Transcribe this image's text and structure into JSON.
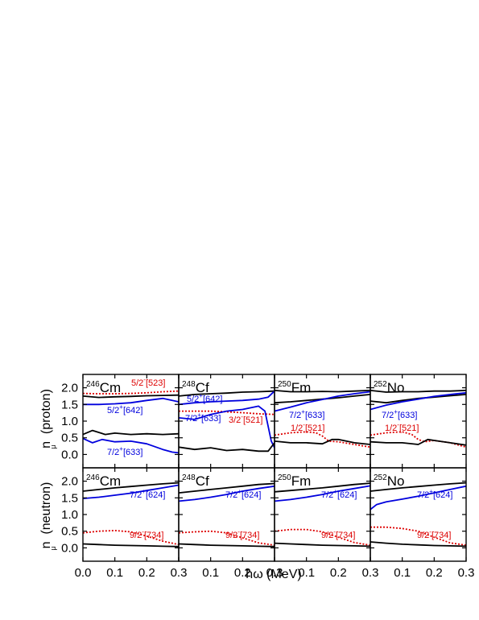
{
  "figure": {
    "xlabel": "ħω (MeV)",
    "ylabel_top": "n  (proton)",
    "ylabel_bottom": "n  (neutron)",
    "ylabel_sub": "μ",
    "colors": {
      "black": "#000000",
      "blue": "#0000dd",
      "red": "#dd0000"
    }
  },
  "chart_data": [
    {
      "type": "line",
      "nucleus": "Cm",
      "mass": "246",
      "row": "proton",
      "xlim": [
        0,
        0.3
      ],
      "ylim": [
        -0.4,
        2.4
      ],
      "xticks": [
        "0.0",
        "0.1",
        "0.2",
        "0.3"
      ],
      "yticks": [
        "0.0",
        "0.5",
        "1.0",
        "1.5",
        "2.0"
      ],
      "series": [
        {
          "color": "black",
          "style": "solid",
          "x": [
            0,
            0.05,
            0.1,
            0.15,
            0.2,
            0.25,
            0.3
          ],
          "y": [
            1.75,
            1.71,
            1.73,
            1.74,
            1.76,
            1.77,
            1.78
          ]
        },
        {
          "color": "red",
          "style": "dotted",
          "label": "5/2",
          "sup": "-",
          "tail": "[523]",
          "x": [
            0,
            0.05,
            0.1,
            0.15,
            0.2,
            0.25,
            0.3
          ],
          "y": [
            1.83,
            1.82,
            1.82,
            1.83,
            1.85,
            1.88,
            1.9
          ]
        },
        {
          "color": "blue",
          "style": "solid",
          "label": "5/2",
          "sup": "+",
          "tail": "[642]",
          "x": [
            0,
            0.05,
            0.1,
            0.15,
            0.2,
            0.25,
            0.3
          ],
          "y": [
            1.5,
            1.5,
            1.52,
            1.55,
            1.62,
            1.68,
            1.58
          ]
        },
        {
          "color": "black",
          "style": "solid",
          "x": [
            0,
            0.03,
            0.07,
            0.1,
            0.15,
            0.2,
            0.25,
            0.3
          ],
          "y": [
            0.6,
            0.72,
            0.6,
            0.64,
            0.6,
            0.62,
            0.6,
            0.62
          ]
        },
        {
          "color": "blue",
          "style": "solid",
          "label": "7/2",
          "sup": "+",
          "tail": "[633]",
          "x": [
            0,
            0.03,
            0.06,
            0.1,
            0.15,
            0.2,
            0.25,
            0.28,
            0.3
          ],
          "y": [
            0.48,
            0.35,
            0.45,
            0.38,
            0.4,
            0.32,
            0.15,
            0.07,
            0.05
          ]
        }
      ]
    },
    {
      "type": "line",
      "nucleus": "Cf",
      "mass": "248",
      "row": "proton",
      "xlim": [
        0,
        0.3
      ],
      "ylim": [
        -0.4,
        2.4
      ],
      "xticks": [
        "0.1",
        "0.2",
        "0.3"
      ],
      "series": [
        {
          "color": "black",
          "style": "solid",
          "x": [
            0,
            0.05,
            0.1,
            0.15,
            0.2,
            0.25,
            0.3
          ],
          "y": [
            1.75,
            1.8,
            1.82,
            1.84,
            1.87,
            1.88,
            1.9
          ]
        },
        {
          "color": "blue",
          "style": "solid",
          "label": "5/2",
          "sup": "+",
          "tail": "[642]",
          "x": [
            0,
            0.05,
            0.1,
            0.15,
            0.2,
            0.25,
            0.28,
            0.3
          ],
          "y": [
            1.5,
            1.55,
            1.58,
            1.6,
            1.62,
            1.66,
            1.72,
            1.9
          ]
        },
        {
          "color": "red",
          "style": "dotted",
          "label": "3/2",
          "sup": "-",
          "tail": "[521]",
          "x": [
            0,
            0.05,
            0.1,
            0.15,
            0.2,
            0.25,
            0.3
          ],
          "y": [
            1.3,
            1.3,
            1.3,
            1.28,
            1.25,
            1.22,
            1.2
          ]
        },
        {
          "color": "blue",
          "style": "solid",
          "label": "7/2",
          "sup": "+",
          "tail": "[633]",
          "x": [
            0,
            0.05,
            0.1,
            0.15,
            0.2,
            0.25,
            0.27,
            0.29,
            0.3
          ],
          "y": [
            1.1,
            1.05,
            1.2,
            1.3,
            1.35,
            1.45,
            1.3,
            0.4,
            0.2
          ]
        },
        {
          "color": "black",
          "style": "solid",
          "x": [
            0,
            0.05,
            0.1,
            0.15,
            0.2,
            0.25,
            0.28,
            0.3
          ],
          "y": [
            0.22,
            0.15,
            0.2,
            0.12,
            0.15,
            0.1,
            0.1,
            0.35
          ]
        }
      ]
    },
    {
      "type": "line",
      "nucleus": "Fm",
      "mass": "250",
      "row": "proton",
      "xlim": [
        0,
        0.3
      ],
      "ylim": [
        -0.4,
        2.4
      ],
      "xticks": [
        "0.1",
        "0.2",
        "0.3"
      ],
      "series": [
        {
          "color": "black",
          "style": "solid",
          "x": [
            0,
            0.05,
            0.1,
            0.15,
            0.2,
            0.25,
            0.3
          ],
          "y": [
            1.92,
            1.88,
            1.88,
            1.89,
            1.88,
            1.9,
            1.92
          ]
        },
        {
          "color": "black",
          "style": "solid",
          "x": [
            0,
            0.05,
            0.1,
            0.15,
            0.2,
            0.25,
            0.3
          ],
          "y": [
            1.55,
            1.58,
            1.62,
            1.66,
            1.7,
            1.75,
            1.8
          ]
        },
        {
          "color": "blue",
          "style": "solid",
          "label": "7/2",
          "sup": "+",
          "tail": "[633]",
          "x": [
            0,
            0.05,
            0.1,
            0.15,
            0.2,
            0.25,
            0.3
          ],
          "y": [
            1.3,
            1.42,
            1.55,
            1.65,
            1.75,
            1.82,
            1.88
          ]
        },
        {
          "color": "red",
          "style": "dotted",
          "label": "1/2",
          "sup": "-",
          "tail": "[521]",
          "x": [
            0,
            0.05,
            0.1,
            0.13,
            0.15,
            0.17,
            0.2,
            0.25,
            0.3
          ],
          "y": [
            0.58,
            0.65,
            0.68,
            0.65,
            0.55,
            0.4,
            0.38,
            0.3,
            0.22
          ]
        },
        {
          "color": "black",
          "style": "solid",
          "x": [
            0,
            0.05,
            0.1,
            0.15,
            0.18,
            0.2,
            0.25,
            0.3
          ],
          "y": [
            0.4,
            0.35,
            0.35,
            0.32,
            0.45,
            0.45,
            0.35,
            0.3
          ]
        }
      ]
    },
    {
      "type": "line",
      "nucleus": "No",
      "mass": "252",
      "row": "proton",
      "xlim": [
        0,
        0.3
      ],
      "ylim": [
        -0.4,
        2.4
      ],
      "xticks": [
        "0.1",
        "0.2",
        "0.3"
      ],
      "series": [
        {
          "color": "black",
          "style": "solid",
          "x": [
            0,
            0.05,
            0.1,
            0.15,
            0.2,
            0.25,
            0.3
          ],
          "y": [
            1.92,
            1.87,
            1.88,
            1.88,
            1.9,
            1.9,
            1.92
          ]
        },
        {
          "color": "black",
          "style": "solid",
          "x": [
            0,
            0.05,
            0.1,
            0.15,
            0.2,
            0.25,
            0.3
          ],
          "y": [
            1.6,
            1.55,
            1.62,
            1.68,
            1.72,
            1.76,
            1.8
          ]
        },
        {
          "color": "blue",
          "style": "solid",
          "label": "7/2",
          "sup": "+",
          "tail": "[633]",
          "x": [
            0,
            0.05,
            0.1,
            0.15,
            0.2,
            0.25,
            0.3
          ],
          "y": [
            1.35,
            1.48,
            1.58,
            1.66,
            1.74,
            1.8,
            1.85
          ]
        },
        {
          "color": "red",
          "style": "dotted",
          "label": "1/2",
          "sup": "-",
          "tail": "[521]",
          "x": [
            0,
            0.05,
            0.1,
            0.13,
            0.15,
            0.17,
            0.2,
            0.25,
            0.3
          ],
          "y": [
            0.58,
            0.65,
            0.68,
            0.6,
            0.45,
            0.38,
            0.42,
            0.35,
            0.22
          ]
        },
        {
          "color": "black",
          "style": "solid",
          "x": [
            0,
            0.05,
            0.1,
            0.15,
            0.18,
            0.2,
            0.25,
            0.3
          ],
          "y": [
            0.38,
            0.35,
            0.35,
            0.3,
            0.45,
            0.42,
            0.35,
            0.28
          ]
        }
      ]
    },
    {
      "type": "line",
      "nucleus": "Cm",
      "mass": "246",
      "row": "neutron",
      "xlim": [
        0,
        0.3
      ],
      "ylim": [
        -0.4,
        2.4
      ],
      "xticks": [
        "0.0",
        "0.1",
        "0.2",
        "0.3"
      ],
      "yticks": [
        "0.0",
        "0.5",
        "1.0",
        "1.5",
        "2.0"
      ],
      "series": [
        {
          "color": "black",
          "style": "solid",
          "x": [
            0,
            0.05,
            0.1,
            0.15,
            0.2,
            0.25,
            0.3
          ],
          "y": [
            1.7,
            1.75,
            1.8,
            1.84,
            1.88,
            1.92,
            1.95
          ]
        },
        {
          "color": "blue",
          "style": "solid",
          "label": "7/2",
          "sup": "+",
          "tail": "[624]",
          "x": [
            0,
            0.05,
            0.1,
            0.15,
            0.2,
            0.25,
            0.3
          ],
          "y": [
            1.48,
            1.52,
            1.58,
            1.64,
            1.72,
            1.8,
            1.88
          ]
        },
        {
          "color": "red",
          "style": "dotted",
          "label": "9/2",
          "sup": "-",
          "tail": "[734]",
          "x": [
            0,
            0.05,
            0.1,
            0.15,
            0.2,
            0.25,
            0.3
          ],
          "y": [
            0.45,
            0.5,
            0.52,
            0.48,
            0.35,
            0.2,
            0.1
          ]
        },
        {
          "color": "black",
          "style": "solid",
          "x": [
            0,
            0.05,
            0.1,
            0.15,
            0.2,
            0.25,
            0.3
          ],
          "y": [
            0.12,
            0.1,
            0.08,
            0.07,
            0.06,
            0.05,
            0.04
          ]
        }
      ]
    },
    {
      "type": "line",
      "nucleus": "Cf",
      "mass": "248",
      "row": "neutron",
      "xlim": [
        0,
        0.3
      ],
      "ylim": [
        -0.4,
        2.4
      ],
      "xticks": [
        "0.1",
        "0.2",
        "0.3"
      ],
      "series": [
        {
          "color": "black",
          "style": "solid",
          "x": [
            0,
            0.05,
            0.1,
            0.15,
            0.2,
            0.25,
            0.3
          ],
          "y": [
            1.65,
            1.7,
            1.75,
            1.8,
            1.85,
            1.9,
            1.93
          ]
        },
        {
          "color": "blue",
          "style": "solid",
          "label": "7/2",
          "sup": "+",
          "tail": "[624]",
          "x": [
            0,
            0.05,
            0.1,
            0.15,
            0.2,
            0.25,
            0.3
          ],
          "y": [
            1.4,
            1.45,
            1.52,
            1.6,
            1.7,
            1.78,
            1.85
          ]
        },
        {
          "color": "red",
          "style": "dotted",
          "label": "9/2",
          "sup": "-",
          "tail": "[734]",
          "x": [
            0,
            0.05,
            0.1,
            0.15,
            0.2,
            0.25,
            0.3
          ],
          "y": [
            0.45,
            0.48,
            0.5,
            0.45,
            0.3,
            0.15,
            0.08
          ]
        },
        {
          "color": "black",
          "style": "solid",
          "x": [
            0,
            0.05,
            0.1,
            0.15,
            0.2,
            0.25,
            0.3
          ],
          "y": [
            0.12,
            0.1,
            0.08,
            0.07,
            0.06,
            0.05,
            0.04
          ]
        }
      ]
    },
    {
      "type": "line",
      "nucleus": "Fm",
      "mass": "250",
      "row": "neutron",
      "xlim": [
        0,
        0.3
      ],
      "ylim": [
        -0.4,
        2.4
      ],
      "xticks": [
        "0.1",
        "0.2",
        "0.3"
      ],
      "series": [
        {
          "color": "black",
          "style": "solid",
          "x": [
            0,
            0.05,
            0.1,
            0.15,
            0.2,
            0.25,
            0.3
          ],
          "y": [
            1.68,
            1.72,
            1.76,
            1.8,
            1.85,
            1.9,
            1.94
          ]
        },
        {
          "color": "blue",
          "style": "solid",
          "label": "7/2",
          "sup": "+",
          "tail": "[624]",
          "x": [
            0,
            0.05,
            0.1,
            0.15,
            0.2,
            0.25,
            0.3
          ],
          "y": [
            1.4,
            1.45,
            1.52,
            1.6,
            1.7,
            1.78,
            1.86
          ]
        },
        {
          "color": "red",
          "style": "dotted",
          "label": "9/2",
          "sup": "-",
          "tail": "[734]",
          "x": [
            0,
            0.05,
            0.1,
            0.15,
            0.2,
            0.25,
            0.3
          ],
          "y": [
            0.5,
            0.55,
            0.55,
            0.48,
            0.32,
            0.16,
            0.08
          ]
        },
        {
          "color": "black",
          "style": "solid",
          "x": [
            0,
            0.05,
            0.1,
            0.15,
            0.2,
            0.25,
            0.3
          ],
          "y": [
            0.14,
            0.12,
            0.1,
            0.08,
            0.07,
            0.06,
            0.05
          ]
        }
      ]
    },
    {
      "type": "line",
      "nucleus": "No",
      "mass": "252",
      "row": "neutron",
      "xlim": [
        0,
        0.3
      ],
      "ylim": [
        -0.4,
        2.4
      ],
      "xticks": [
        "0.1",
        "0.2",
        "0.3"
      ],
      "series": [
        {
          "color": "black",
          "style": "solid",
          "x": [
            0,
            0.05,
            0.1,
            0.15,
            0.2,
            0.25,
            0.3
          ],
          "y": [
            1.7,
            1.75,
            1.8,
            1.84,
            1.88,
            1.92,
            1.95
          ]
        },
        {
          "color": "blue",
          "style": "solid",
          "label": "7/2",
          "sup": "+",
          "tail": "[624]",
          "x": [
            0,
            0.02,
            0.05,
            0.1,
            0.15,
            0.2,
            0.25,
            0.3
          ],
          "y": [
            1.15,
            1.3,
            1.38,
            1.46,
            1.55,
            1.65,
            1.75,
            1.85
          ]
        },
        {
          "color": "red",
          "style": "dotted",
          "label": "9/2",
          "sup": "-",
          "tail": "[734]",
          "x": [
            0,
            0.05,
            0.1,
            0.15,
            0.2,
            0.25,
            0.3
          ],
          "y": [
            0.62,
            0.62,
            0.58,
            0.5,
            0.32,
            0.15,
            0.08
          ]
        },
        {
          "color": "black",
          "style": "solid",
          "x": [
            0,
            0.05,
            0.1,
            0.15,
            0.2,
            0.25,
            0.3
          ],
          "y": [
            0.18,
            0.14,
            0.11,
            0.09,
            0.07,
            0.06,
            0.05
          ]
        }
      ]
    }
  ]
}
